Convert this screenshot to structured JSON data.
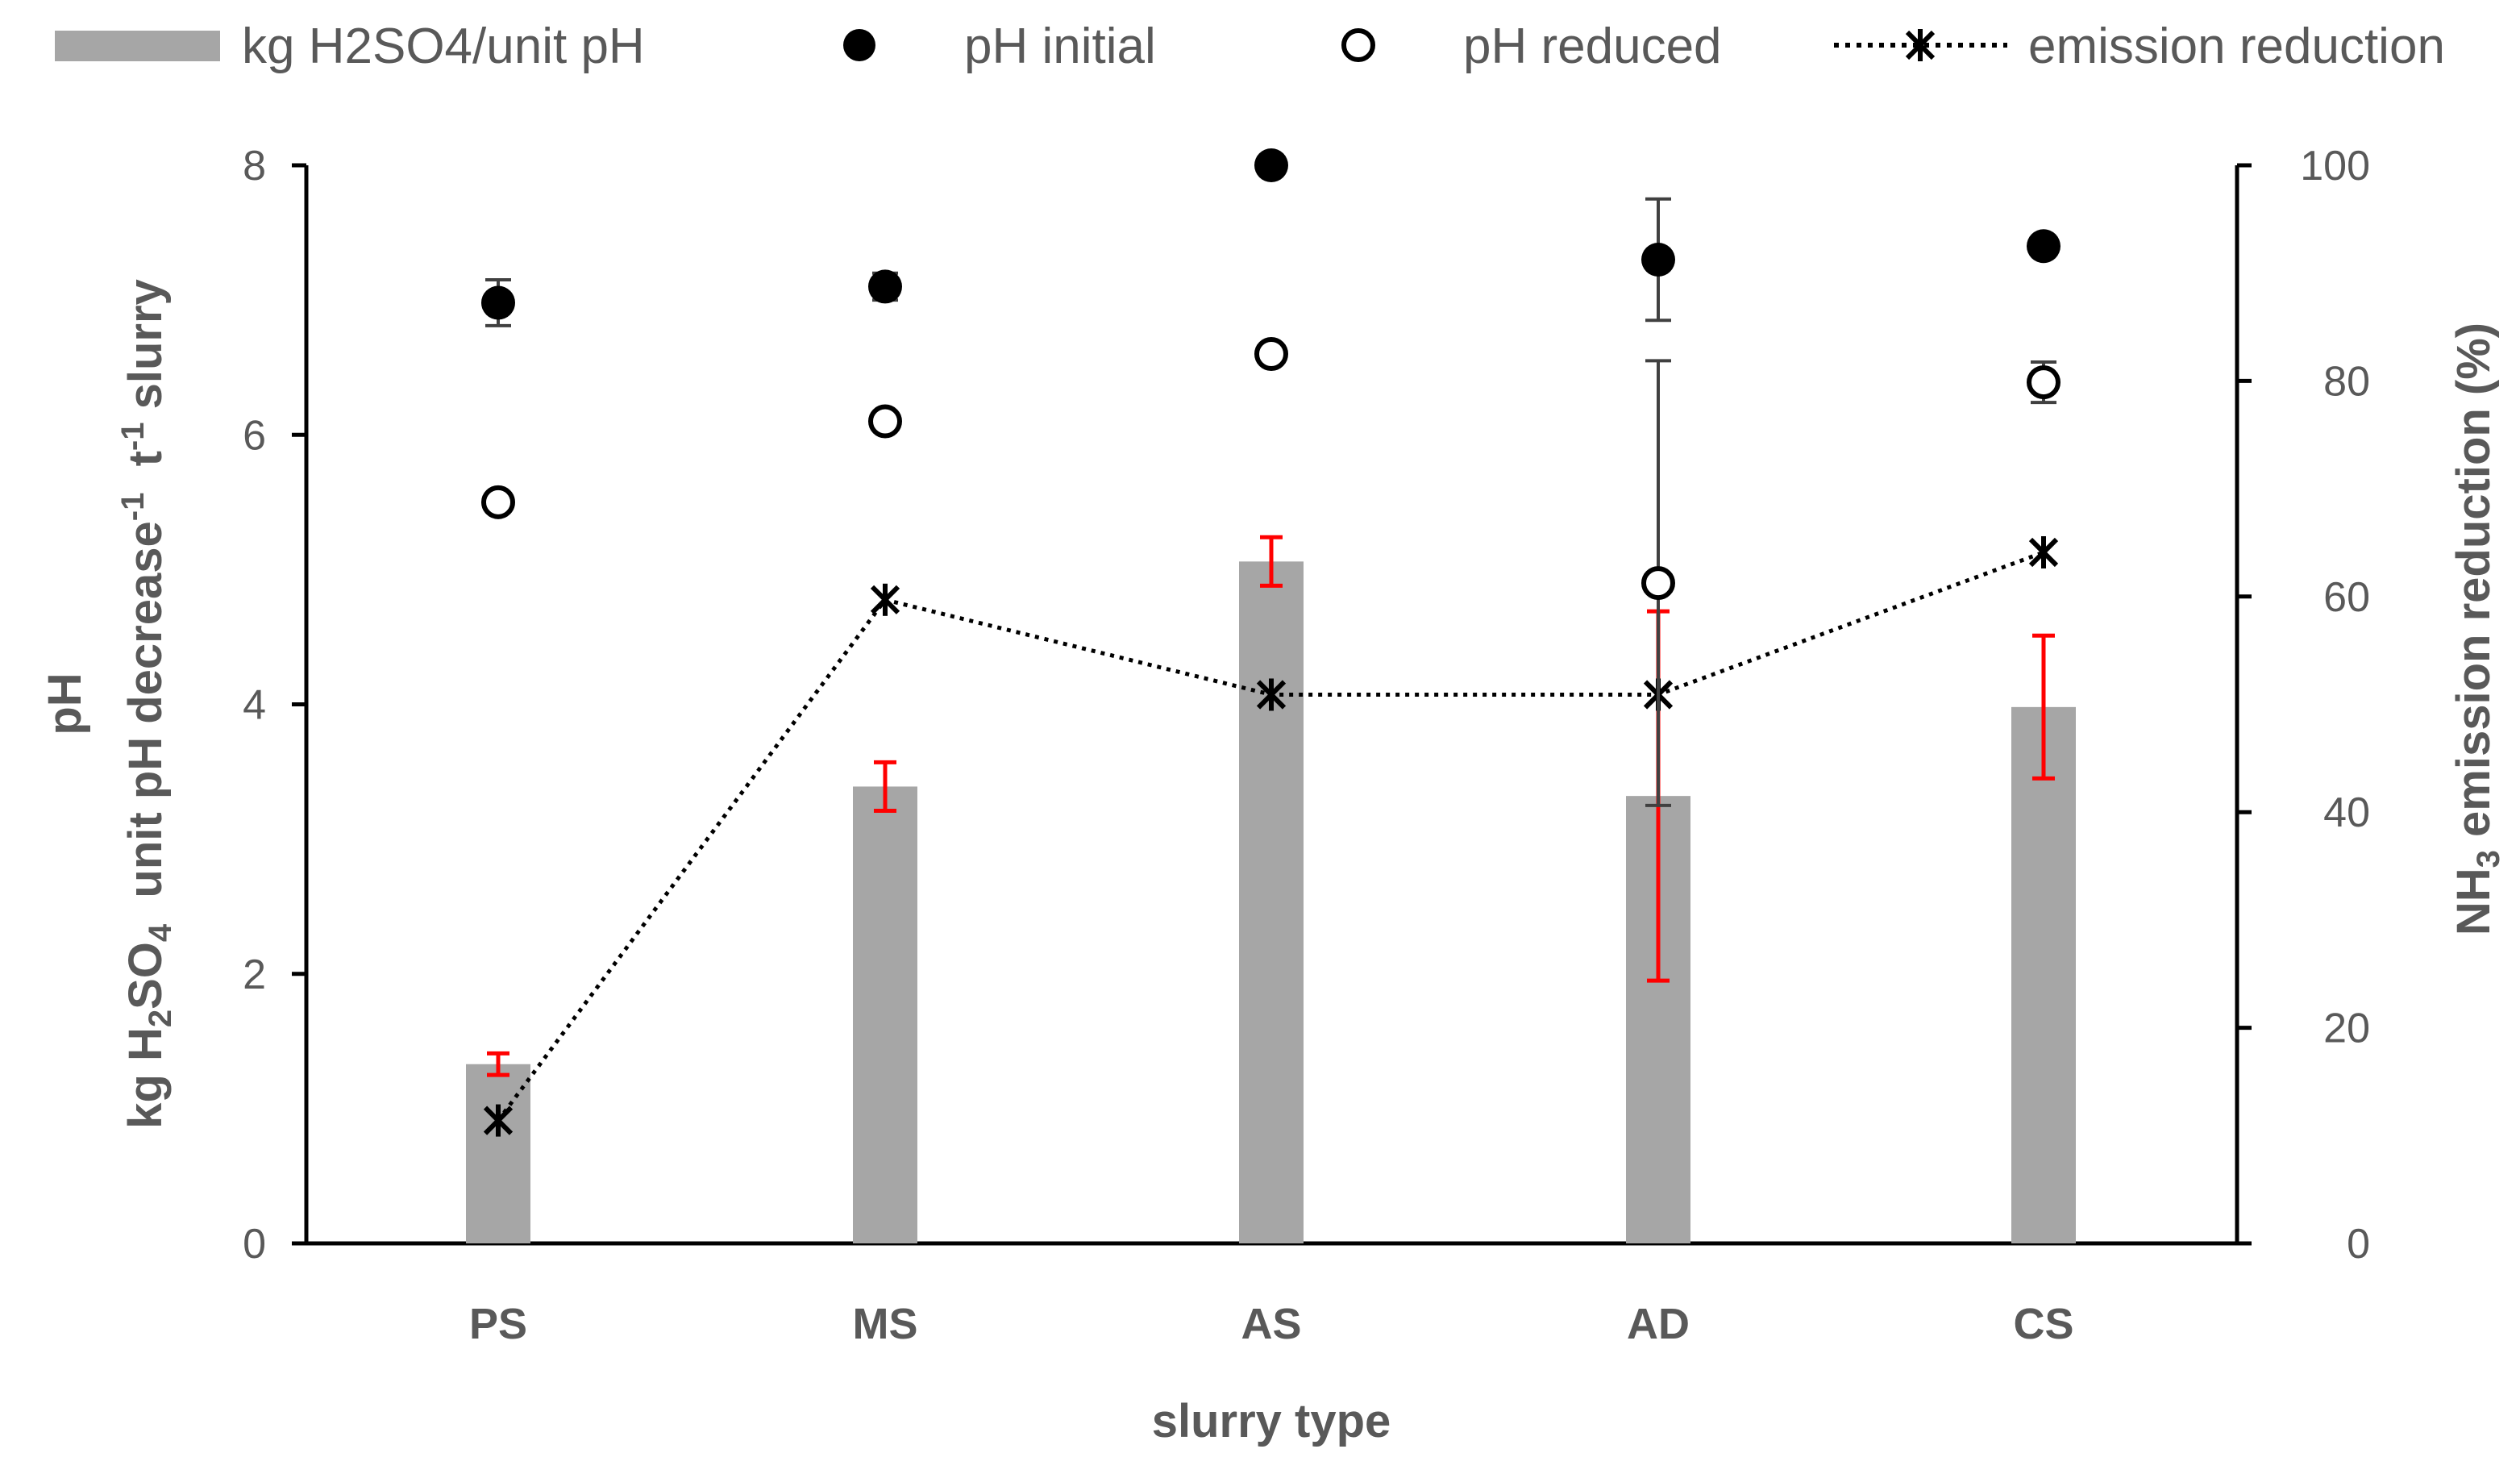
{
  "chart_data": {
    "type": "bar",
    "categories": [
      "PS",
      "MS",
      "AS",
      "AD",
      "CS"
    ],
    "bars": {
      "name": "kg H2SO4/unit pH",
      "values": [
        1.33,
        3.39,
        5.06,
        3.32,
        3.98
      ],
      "errors": [
        0.08,
        0.18,
        0.18,
        1.37,
        0.53
      ],
      "color": "#a6a6a6",
      "error_color": "#ff0000"
    },
    "ph_initial": {
      "name": "pH initial",
      "values": [
        6.98,
        7.1,
        8.0,
        7.3,
        7.4
      ],
      "errors": [
        0.17,
        0.1,
        0.0,
        0.45,
        0.0
      ],
      "marker": "filled-circle"
    },
    "ph_reduced": {
      "name": "pH reduced",
      "values": [
        5.5,
        6.1,
        6.6,
        4.9,
        6.39
      ],
      "errors": [
        0.0,
        0.05,
        0.06,
        1.65,
        0.15
      ],
      "marker": "open-circle"
    },
    "emission_reduction": {
      "name": "emission reduction",
      "values": [
        11.4,
        59.7,
        50.9,
        50.9,
        64.1
      ],
      "axis": "right",
      "line_style": "dotted",
      "marker": "asterisk"
    },
    "xlabel": "slurry type",
    "ylabel_left_line1": "pH",
    "ylabel_left_line2": {
      "kg": "kg H",
      "sub2": "2",
      "so": "SO",
      "sub4": "4",
      "unit": "  unit pH decrease",
      "sup1": "-1",
      "t": "  t",
      "sup2": "-1",
      "slurry": " slurry"
    },
    "ylabel_right": {
      "nh": "NH",
      "sub3": "3",
      "rest": " emission reduction (%)"
    },
    "ylim_left": [
      0,
      8
    ],
    "yticks_left": [
      "0",
      "2",
      "4",
      "6",
      "8"
    ],
    "ylim_right": [
      0,
      100
    ],
    "yticks_right": [
      "0",
      "20",
      "40",
      "60",
      "80",
      "100"
    ],
    "grid": false,
    "legend_position": "top",
    "colors": {
      "text": "#595959",
      "axis": "#000000",
      "marker": "#000000"
    }
  }
}
